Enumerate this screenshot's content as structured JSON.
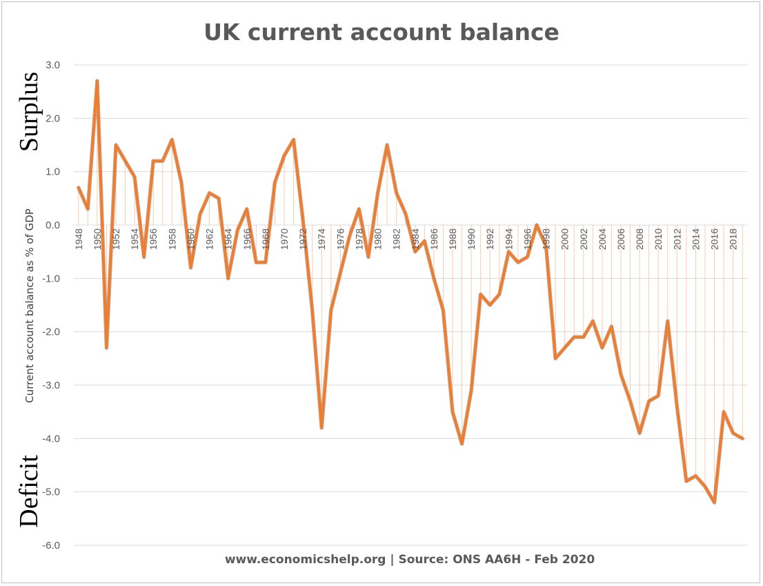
{
  "chart_data": {
    "type": "line",
    "title": "UK current account balance",
    "ylabel": "Current account balance as % of GDP",
    "side_labels": {
      "top": "Surplus",
      "bottom": "Deficit"
    },
    "source": "www.economicshelp.org | Source: ONS AA6H - Feb 2020",
    "ylim": [
      -6.0,
      3.0
    ],
    "y_ticks": [
      3.0,
      2.0,
      1.0,
      0.0,
      -1.0,
      -2.0,
      -3.0,
      -4.0,
      -5.0,
      -6.0
    ],
    "y_tick_labels": [
      "3.0",
      "2.0",
      "1.0",
      "0.0",
      "-1.0",
      "-2.0",
      "-3.0",
      "-4.0",
      "-5.0",
      "-6.0"
    ],
    "x_tick_labels": [
      "1948",
      "1950",
      "1952",
      "1954",
      "1956",
      "1958",
      "1960",
      "1962",
      "1964",
      "1966",
      "1968",
      "1970",
      "1972",
      "1974",
      "1976",
      "1978",
      "1980",
      "1982",
      "1984",
      "1986",
      "1988",
      "1990",
      "1992",
      "1994",
      "1996",
      "1998",
      "2000",
      "2002",
      "2004",
      "2006",
      "2008",
      "2010",
      "2012",
      "2014",
      "2016",
      "2018"
    ],
    "grid": true,
    "drop_lines": true,
    "color": "#ED7D31",
    "drop_line_color": "#F8CBAD",
    "grid_color": "#D9D9D9",
    "x": [
      1948,
      1949,
      1950,
      1951,
      1952,
      1953,
      1954,
      1955,
      1956,
      1957,
      1958,
      1959,
      1960,
      1961,
      1962,
      1963,
      1964,
      1965,
      1966,
      1967,
      1968,
      1969,
      1970,
      1971,
      1972,
      1973,
      1974,
      1975,
      1976,
      1977,
      1978,
      1979,
      1980,
      1981,
      1982,
      1983,
      1984,
      1985,
      1986,
      1987,
      1988,
      1989,
      1990,
      1991,
      1992,
      1993,
      1994,
      1995,
      1996,
      1997,
      1998,
      1999,
      2000,
      2001,
      2002,
      2003,
      2004,
      2005,
      2006,
      2007,
      2008,
      2009,
      2010,
      2011,
      2012,
      2013,
      2014,
      2015,
      2016,
      2017,
      2018,
      2019
    ],
    "values": [
      0.7,
      0.3,
      2.7,
      -2.3,
      1.5,
      1.2,
      0.9,
      -0.6,
      1.2,
      1.2,
      1.6,
      0.8,
      -0.8,
      0.2,
      0.6,
      0.5,
      -1.0,
      -0.1,
      0.3,
      -0.7,
      -0.7,
      0.8,
      1.3,
      1.6,
      0.1,
      -1.6,
      -3.8,
      -1.6,
      -0.9,
      -0.2,
      0.3,
      -0.6,
      0.6,
      1.5,
      0.6,
      0.2,
      -0.5,
      -0.3,
      -1.0,
      -1.6,
      -3.5,
      -4.1,
      -3.1,
      -1.3,
      -1.5,
      -1.3,
      -0.5,
      -0.7,
      -0.6,
      0.0,
      -0.4,
      -2.5,
      -2.3,
      -2.1,
      -2.1,
      -1.8,
      -2.3,
      -1.9,
      -2.8,
      -3.3,
      -3.9,
      -3.3,
      -3.2,
      -1.8,
      -3.4,
      -4.8,
      -4.7,
      -4.9,
      -5.2,
      -3.5,
      -3.9,
      -4.0
    ]
  }
}
